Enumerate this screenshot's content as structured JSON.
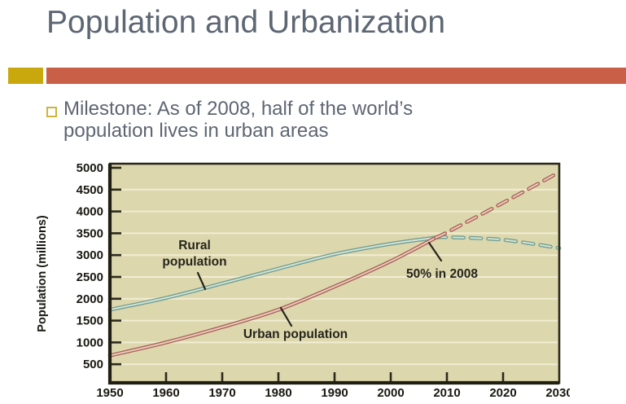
{
  "slide": {
    "title": "Population and Urbanization",
    "bullet_text": "Milestone: As of 2008, half of the world’s population lives in urban areas"
  },
  "theme": {
    "title_color": "#5d6673",
    "accent_gold": "#c8a80d",
    "accent_orange": "#ca5f47",
    "body_text_color": "#5d6673"
  },
  "chart_data": {
    "type": "line",
    "ylabel": "Population (millions)",
    "xlabel": "",
    "xlim": [
      1950,
      2030
    ],
    "ylim": [
      0,
      5180
    ],
    "x_ticks": [
      1950,
      1960,
      1970,
      1980,
      1990,
      2000,
      2010,
      2020,
      2030
    ],
    "y_ticks": [
      500,
      1000,
      1500,
      2000,
      2500,
      3000,
      3500,
      4000,
      4500,
      5000
    ],
    "grid": true,
    "background_color": "#ddd7ad",
    "gridline_color": "#f1edd3",
    "frame_color": "#2c2a1c",
    "tick_text_color": "#191810",
    "projection_note": "dashed after 2008",
    "series": [
      {
        "name": "Rural population",
        "color_dark": "#6f9f91",
        "color_light": "#d7e4d8",
        "projection_from": 2008,
        "points": [
          [
            1950,
            1750
          ],
          [
            1960,
            2020
          ],
          [
            1970,
            2350
          ],
          [
            1980,
            2690
          ],
          [
            1990,
            3020
          ],
          [
            2000,
            3260
          ],
          [
            2008,
            3400
          ],
          [
            2010,
            3410
          ],
          [
            2020,
            3350
          ],
          [
            2030,
            3160
          ]
        ]
      },
      {
        "name": "Urban population",
        "color_dark": "#ac6057",
        "color_light": "#e7d0bf",
        "projection_from": 2008,
        "points": [
          [
            1950,
            700
          ],
          [
            1960,
            1000
          ],
          [
            1970,
            1350
          ],
          [
            1980,
            1750
          ],
          [
            1990,
            2280
          ],
          [
            2000,
            2860
          ],
          [
            2008,
            3400
          ],
          [
            2010,
            3520
          ],
          [
            2020,
            4200
          ],
          [
            2030,
            4900
          ]
        ]
      }
    ],
    "annotations": [
      {
        "id": "rural-label",
        "text_lines": [
          "Rural",
          "population"
        ]
      },
      {
        "id": "urban-label",
        "text_lines": [
          "Urban population"
        ]
      },
      {
        "id": "milestone-label",
        "text_lines": [
          "50% in 2008"
        ]
      }
    ]
  }
}
